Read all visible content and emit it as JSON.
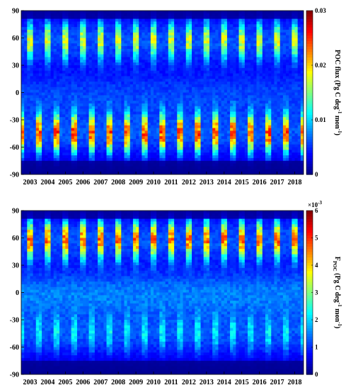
{
  "chart_data": [
    {
      "type": "heatmap",
      "x_tick_labels": [
        "2003",
        "2004",
        "2005",
        "2006",
        "2007",
        "2008",
        "2009",
        "2010",
        "2011",
        "2012",
        "2013",
        "2014",
        "2015",
        "2016",
        "2017",
        "2018"
      ],
      "y_tick_labels": [
        "90",
        "60",
        "30",
        "0",
        "-30",
        "-60",
        "-90"
      ],
      "ylim": [
        -90,
        90
      ],
      "colorbar": {
        "tick_labels": [
          "0.03",
          "0.02",
          "0.01",
          "0"
        ],
        "range": [
          0,
          0.03
        ],
        "label_main": "POC flux (Pg C deg",
        "label_sup1": "-1",
        "label_mid": " mon",
        "label_sup2": "-1",
        "label_end": ")"
      },
      "seasonal_peaks": [
        {
          "lat": 57,
          "value": 0.018,
          "phase": 0.5
        },
        {
          "lat": -45,
          "value": 0.028,
          "phase": 0.0
        }
      ],
      "colormap": "jet"
    },
    {
      "type": "heatmap",
      "x_tick_labels": [
        "2003",
        "2004",
        "2005",
        "2006",
        "2007",
        "2008",
        "2009",
        "2010",
        "2011",
        "2012",
        "2013",
        "2014",
        "2015",
        "2016",
        "2017",
        "2018"
      ],
      "y_tick_labels": [
        "90",
        "60",
        "30",
        "0",
        "-30",
        "-60",
        "-90"
      ],
      "ylim": [
        -90,
        90
      ],
      "colorbar": {
        "tick_labels": [
          "6",
          "5",
          "4",
          "3",
          "2",
          "1",
          "0"
        ],
        "range": [
          0,
          6
        ],
        "exponent": "×10",
        "exponent_power": "-3",
        "label_main": "F",
        "label_sub": "POC",
        "label_rest": " (Pg C deg",
        "label_sup1": "-1",
        "label_mid": " mon",
        "label_sup2": "-1",
        "label_end": ")"
      },
      "seasonal_peaks": [
        {
          "lat": 58,
          "value": 5.2,
          "phase": 0.5
        },
        {
          "lat": -45,
          "value": 1.5,
          "phase": 0.0
        }
      ],
      "colormap": "jet"
    }
  ]
}
